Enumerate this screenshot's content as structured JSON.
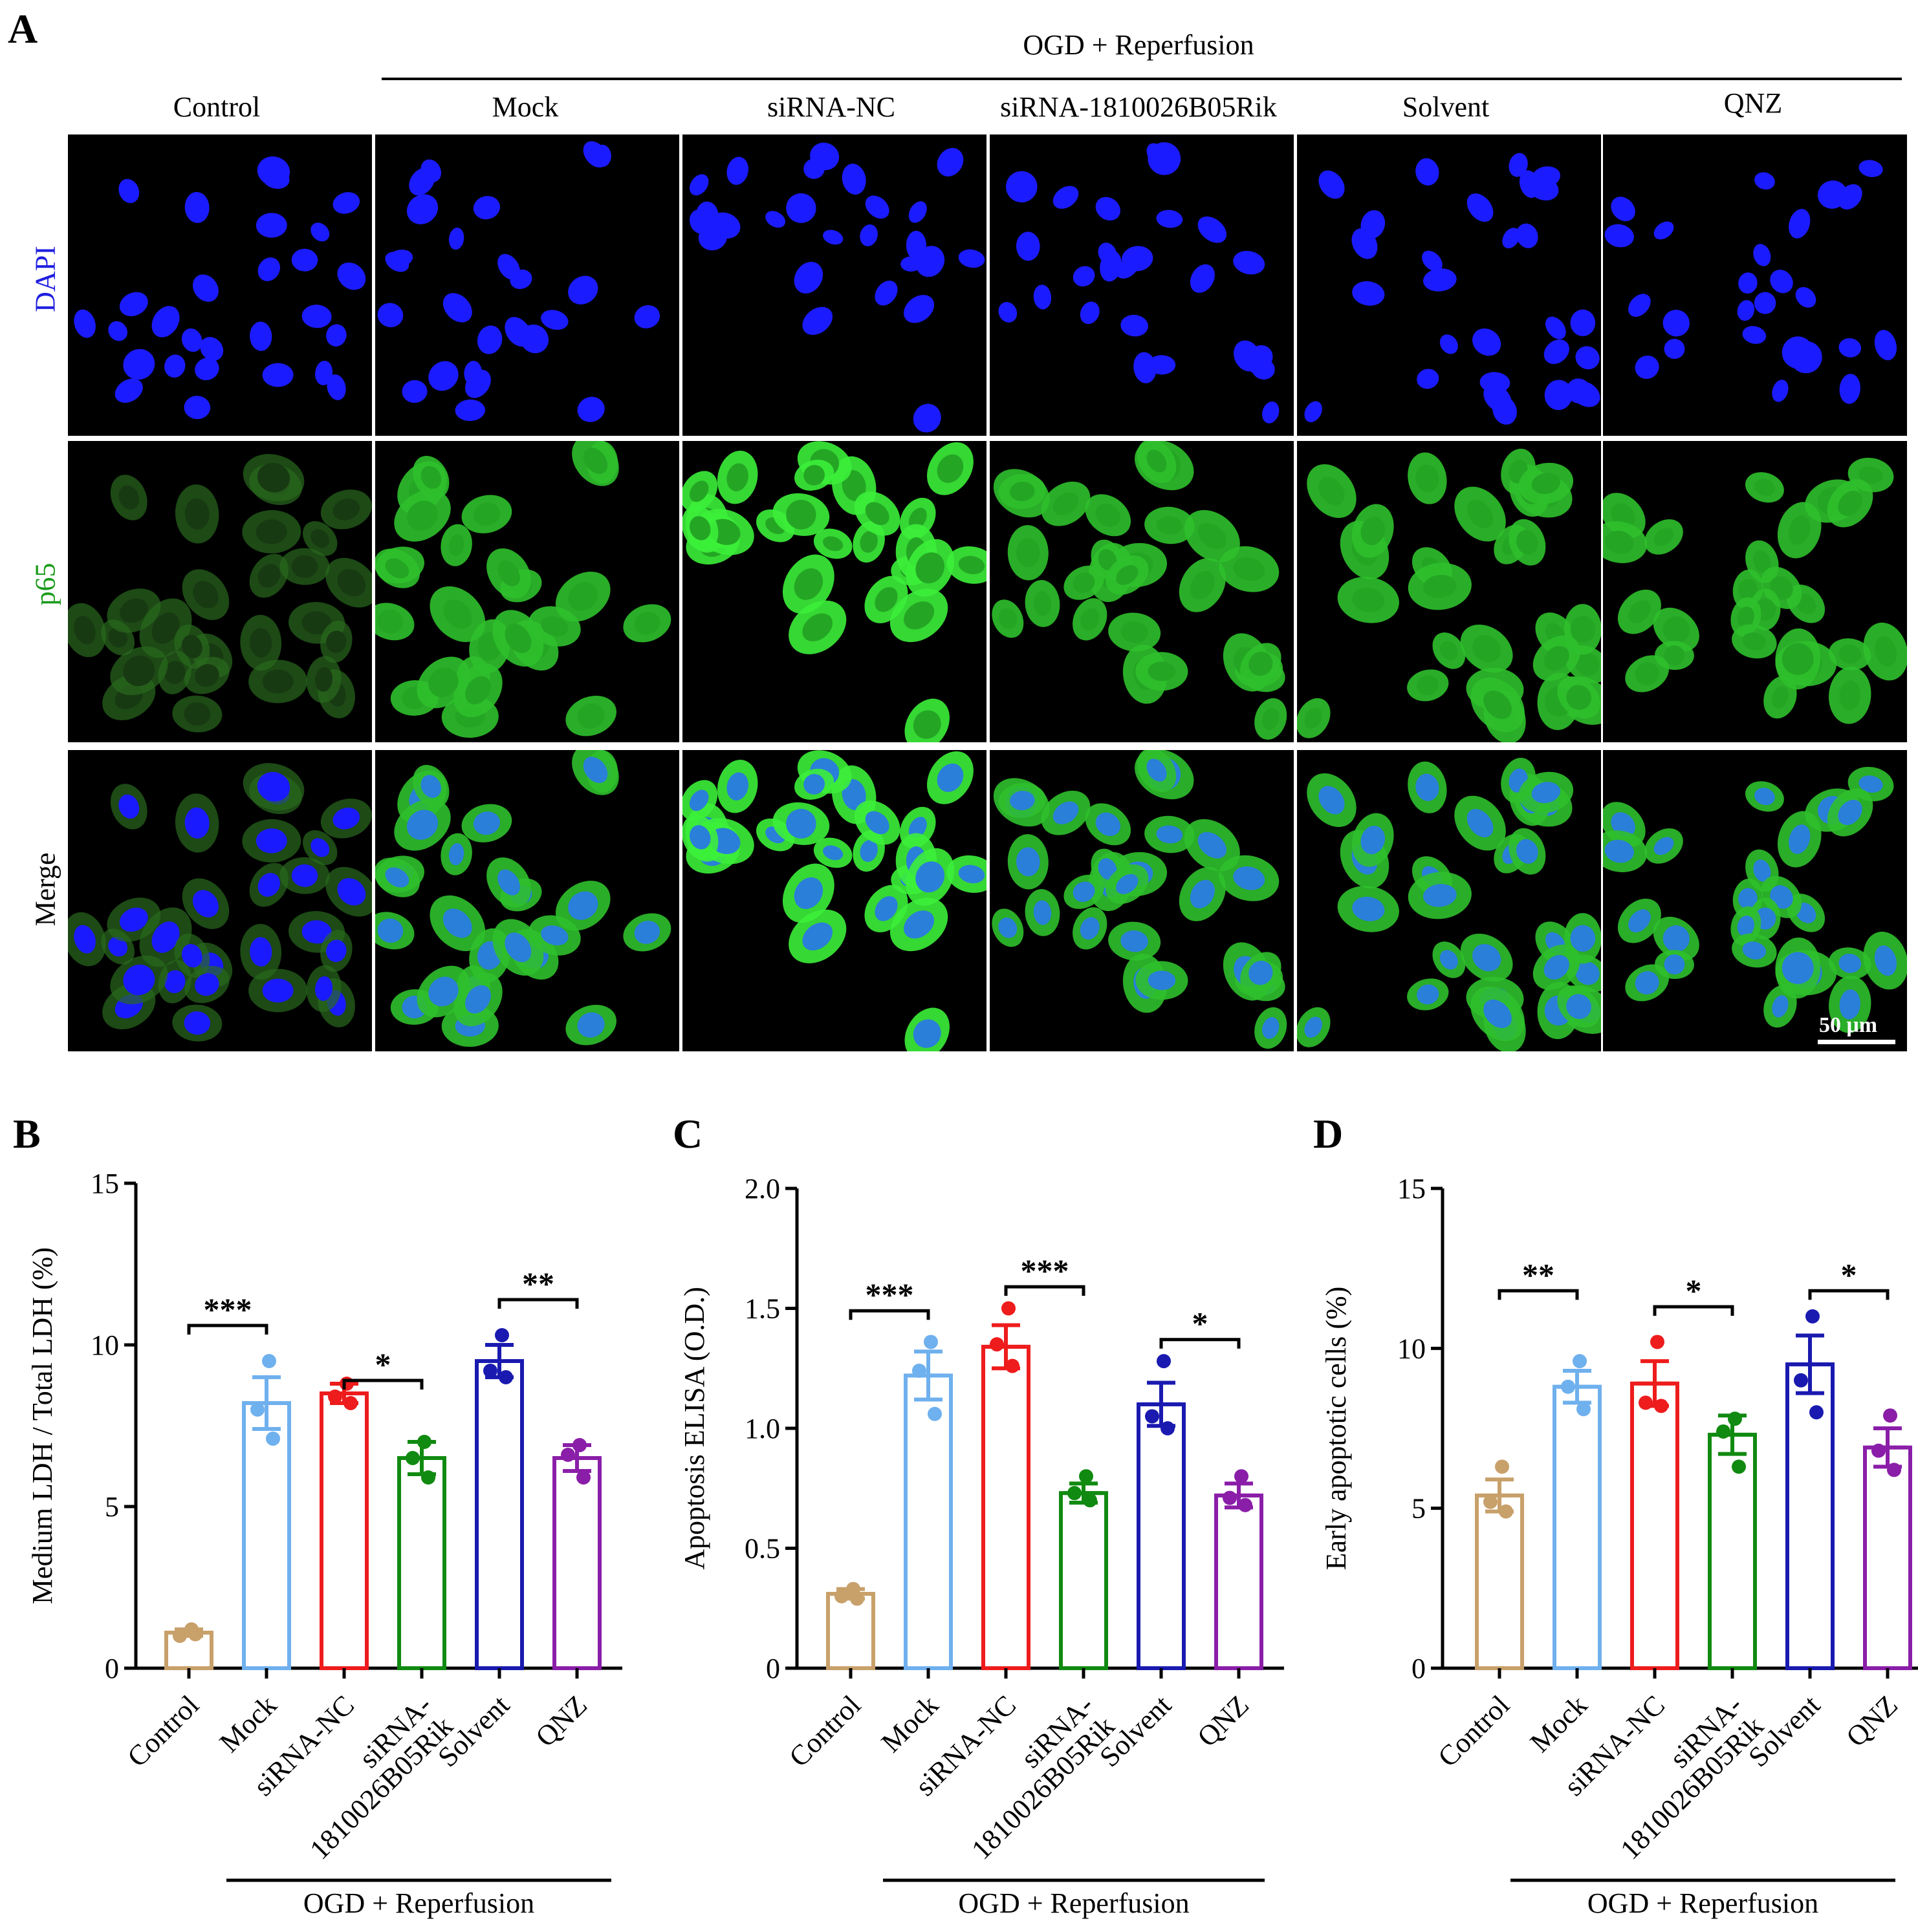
{
  "panel_a": {
    "letter": "A",
    "ogd_header": "OGD + Reperfusion",
    "columns": [
      "Control",
      "Mock",
      "siRNA-NC",
      "siRNA-1810026B05Rik",
      "Solvent",
      "QNZ"
    ],
    "rows": [
      {
        "label": "DAPI",
        "color": "#1f1fe0"
      },
      {
        "label": "p65",
        "color": "#1a9a1a"
      },
      {
        "label": "Merge",
        "color": "#000000"
      }
    ],
    "scale_bar": "50 μm"
  },
  "chart_data": [
    {
      "panel": "B",
      "type": "bar",
      "title": "",
      "xlabel": "",
      "ylabel": "Medium LDH / Total LDH (%)",
      "ylim": [
        0,
        15
      ],
      "yticks": [
        "0",
        "5",
        "10",
        "15"
      ],
      "categories": [
        "Control",
        "Mock",
        "siRNA-NC",
        "siRNA-\n1810026B05Rik",
        "Solvent",
        "QNZ"
      ],
      "colors": [
        "#c8a06a",
        "#6fb0ee",
        "#ee1c1c",
        "#118a11",
        "#1a1ab0",
        "#8a1ea8"
      ],
      "values": [
        1.1,
        8.2,
        8.5,
        6.5,
        9.5,
        6.5
      ],
      "errors": [
        0.1,
        0.8,
        0.3,
        0.5,
        0.5,
        0.4
      ],
      "points": [
        [
          1.2,
          1.0,
          1.05
        ],
        [
          9.5,
          8.0,
          7.1
        ],
        [
          8.8,
          8.4,
          8.2
        ],
        [
          7.0,
          6.5,
          5.9
        ],
        [
          10.3,
          9.2,
          9.0
        ],
        [
          6.9,
          6.6,
          5.9
        ]
      ],
      "bracket_label": "OGD + Reperfusion",
      "significance": [
        {
          "from": 0,
          "to": 1,
          "label": "***",
          "y": 10.6
        },
        {
          "from": 2,
          "to": 3,
          "label": "*",
          "y": 8.9
        },
        {
          "from": 4,
          "to": 5,
          "label": "**",
          "y": 11.4
        }
      ]
    },
    {
      "panel": "C",
      "type": "bar",
      "title": "",
      "xlabel": "",
      "ylabel": "Apoptosis ELISA (O.D.)",
      "ylim": [
        0,
        2.0
      ],
      "yticks": [
        "0",
        "0.5",
        "1.0",
        "1.5",
        "2.0"
      ],
      "categories": [
        "Control",
        "Mock",
        "siRNA-NC",
        "siRNA-\n1810026B05Rik",
        "Solvent",
        "QNZ"
      ],
      "colors": [
        "#c8a06a",
        "#6fb0ee",
        "#ee1c1c",
        "#118a11",
        "#1a1ab0",
        "#8a1ea8"
      ],
      "values": [
        0.31,
        1.22,
        1.34,
        0.73,
        1.1,
        0.72
      ],
      "errors": [
        0.02,
        0.1,
        0.09,
        0.04,
        0.09,
        0.05
      ],
      "points": [
        [
          0.33,
          0.3,
          0.29
        ],
        [
          1.36,
          1.24,
          1.06
        ],
        [
          1.5,
          1.35,
          1.26
        ],
        [
          0.8,
          0.73,
          0.7
        ],
        [
          1.28,
          1.05,
          1.0
        ],
        [
          0.8,
          0.71,
          0.68
        ]
      ],
      "bracket_label": "OGD + Reperfusion",
      "significance": [
        {
          "from": 0,
          "to": 1,
          "label": "***",
          "y": 1.49
        },
        {
          "from": 2,
          "to": 3,
          "label": "***",
          "y": 1.59
        },
        {
          "from": 4,
          "to": 5,
          "label": "*",
          "y": 1.37
        }
      ]
    },
    {
      "panel": "D",
      "type": "bar",
      "title": "",
      "xlabel": "",
      "ylabel": "Early apoptotic cells (%)",
      "ylim": [
        0,
        15
      ],
      "yticks": [
        "0",
        "5",
        "10",
        "15"
      ],
      "categories": [
        "Control",
        "Mock",
        "siRNA-NC",
        "siRNA-\n1810026B05Rik",
        "Solvent",
        "QNZ"
      ],
      "colors": [
        "#c8a06a",
        "#6fb0ee",
        "#ee1c1c",
        "#118a11",
        "#1a1ab0",
        "#8a1ea8"
      ],
      "values": [
        5.4,
        8.8,
        8.9,
        7.3,
        9.5,
        6.9
      ],
      "errors": [
        0.5,
        0.5,
        0.7,
        0.6,
        0.9,
        0.6
      ],
      "points": [
        [
          6.3,
          5.2,
          4.9
        ],
        [
          9.6,
          8.8,
          8.1
        ],
        [
          10.2,
          8.3,
          8.2
        ],
        [
          7.8,
          7.4,
          6.3
        ],
        [
          11.0,
          9.0,
          8.0
        ],
        [
          7.9,
          6.8,
          6.2
        ]
      ],
      "bracket_label": "OGD + Reperfusion",
      "significance": [
        {
          "from": 0,
          "to": 1,
          "label": "**",
          "y": 11.8
        },
        {
          "from": 2,
          "to": 3,
          "label": "*",
          "y": 11.3
        },
        {
          "from": 4,
          "to": 5,
          "label": "*",
          "y": 11.8
        }
      ]
    }
  ]
}
